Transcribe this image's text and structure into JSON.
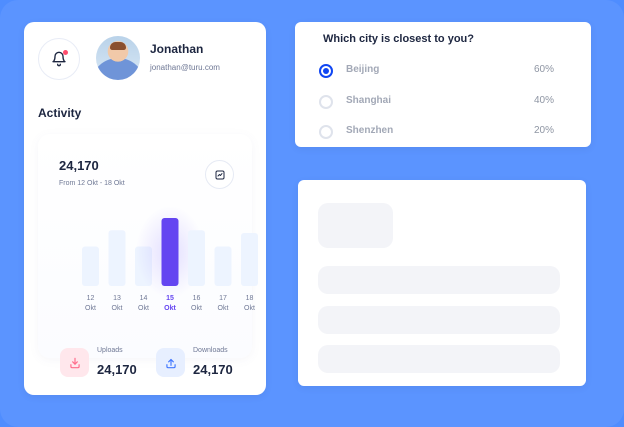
{
  "user": {
    "name": "Jonathan",
    "email": "jonathan@turu.com"
  },
  "activity": {
    "title": "Activity",
    "total": "24,170",
    "range": "From 12 Okt - 18 Okt",
    "highlight_color": "#6445f1",
    "bar_color": "#edf4ff"
  },
  "chart_data": {
    "type": "bar",
    "categories": [
      "12 Okt",
      "13 Okt",
      "14 Okt",
      "15 Okt",
      "16 Okt",
      "17 Okt",
      "18 Okt"
    ],
    "category_days": [
      "12",
      "13",
      "14",
      "15",
      "16",
      "17",
      "18"
    ],
    "category_month": "Okt",
    "values": [
      58,
      82,
      58,
      100,
      82,
      58,
      78
    ],
    "highlighted_index": 3,
    "ylim": [
      0,
      100
    ],
    "grid": false
  },
  "stats": {
    "uploads": {
      "label": "Uploads",
      "value": "24,170",
      "icon": "download-icon"
    },
    "downloads": {
      "label": "Downloads",
      "value": "24,170",
      "icon": "upload-icon"
    }
  },
  "poll": {
    "question": "Which city is closest to you?",
    "accent": "#1046f3",
    "options": [
      {
        "label": "Beijing",
        "percent": "60%",
        "value": 0.6,
        "selected": true
      },
      {
        "label": "Shanghai",
        "percent": "40%",
        "value": 0.4,
        "selected": false
      },
      {
        "label": "Shenzhen",
        "percent": "20%",
        "value": 0.2,
        "selected": false
      }
    ]
  },
  "icons": {
    "notification": "bell-icon",
    "trend": "trend-icon"
  }
}
